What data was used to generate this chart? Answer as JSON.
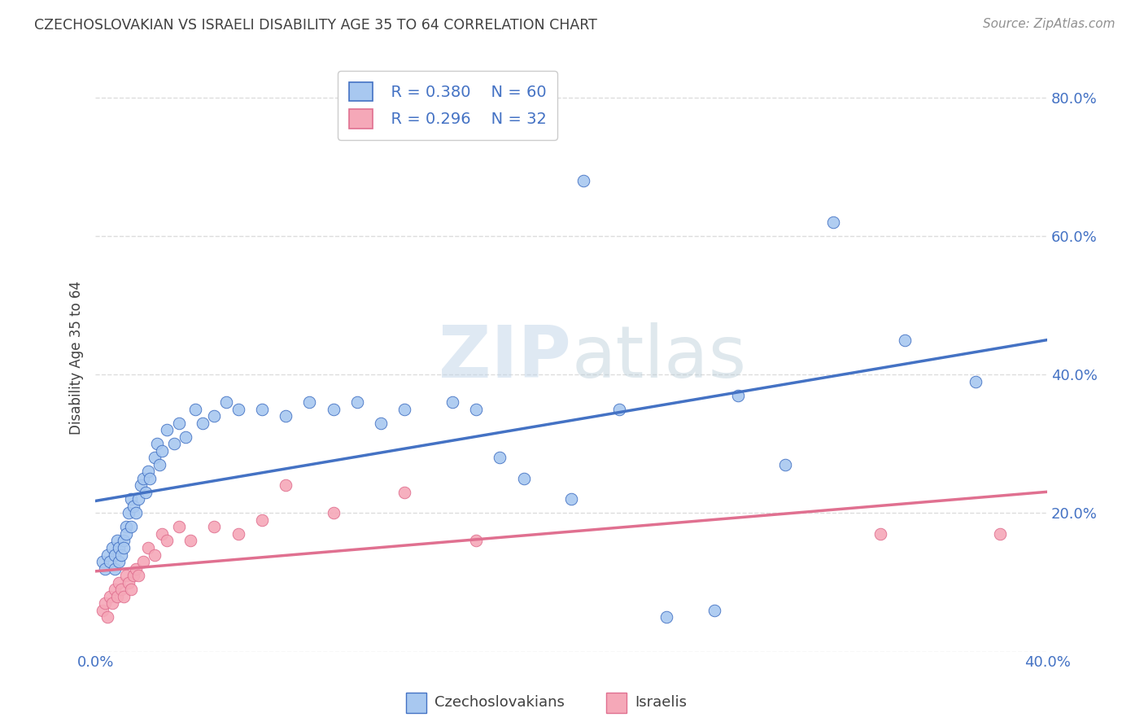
{
  "title": "CZECHOSLOVAKIAN VS ISRAELI DISABILITY AGE 35 TO 64 CORRELATION CHART",
  "source": "Source: ZipAtlas.com",
  "ylabel": "Disability Age 35 to 64",
  "xlabel_czechs": "Czechoslovakians",
  "xlabel_israelis": "Israelis",
  "watermark_zip": "ZIP",
  "watermark_atlas": "atlas",
  "xlim": [
    0.0,
    0.4
  ],
  "ylim": [
    0.0,
    0.85
  ],
  "xtick_vals": [
    0.0,
    0.1,
    0.2,
    0.3,
    0.4
  ],
  "xtick_labels": [
    "0.0%",
    "",
    "",
    "",
    "40.0%"
  ],
  "ytick_vals": [
    0.0,
    0.2,
    0.4,
    0.6,
    0.8
  ],
  "ytick_labels": [
    "",
    "20.0%",
    "40.0%",
    "60.0%",
    "80.0%"
  ],
  "legend_r_czech": "R = 0.380",
  "legend_n_czech": "N = 60",
  "legend_r_israeli": "R = 0.296",
  "legend_n_israeli": "N = 32",
  "color_czech": "#a8c8f0",
  "color_israeli": "#f5a8b8",
  "color_czech_line": "#4472c4",
  "color_israeli_line": "#e07090",
  "color_title": "#404040",
  "color_source": "#909090",
  "color_tick_labels": "#4472c4",
  "background_color": "#ffffff",
  "grid_color": "#dddddd",
  "czech_x": [
    0.003,
    0.004,
    0.005,
    0.006,
    0.007,
    0.008,
    0.008,
    0.009,
    0.01,
    0.01,
    0.011,
    0.012,
    0.012,
    0.013,
    0.013,
    0.014,
    0.015,
    0.015,
    0.016,
    0.017,
    0.018,
    0.019,
    0.02,
    0.021,
    0.022,
    0.023,
    0.025,
    0.026,
    0.027,
    0.028,
    0.03,
    0.033,
    0.035,
    0.038,
    0.042,
    0.045,
    0.05,
    0.055,
    0.06,
    0.07,
    0.08,
    0.09,
    0.1,
    0.11,
    0.12,
    0.13,
    0.15,
    0.16,
    0.17,
    0.18,
    0.2,
    0.205,
    0.22,
    0.24,
    0.26,
    0.27,
    0.29,
    0.31,
    0.34,
    0.37
  ],
  "czech_y": [
    0.13,
    0.12,
    0.14,
    0.13,
    0.15,
    0.14,
    0.12,
    0.16,
    0.15,
    0.13,
    0.14,
    0.16,
    0.15,
    0.18,
    0.17,
    0.2,
    0.18,
    0.22,
    0.21,
    0.2,
    0.22,
    0.24,
    0.25,
    0.23,
    0.26,
    0.25,
    0.28,
    0.3,
    0.27,
    0.29,
    0.32,
    0.3,
    0.33,
    0.31,
    0.35,
    0.33,
    0.34,
    0.36,
    0.35,
    0.35,
    0.34,
    0.36,
    0.35,
    0.36,
    0.33,
    0.35,
    0.36,
    0.35,
    0.28,
    0.25,
    0.22,
    0.68,
    0.35,
    0.05,
    0.06,
    0.37,
    0.27,
    0.62,
    0.45,
    0.39
  ],
  "israeli_x": [
    0.003,
    0.004,
    0.005,
    0.006,
    0.007,
    0.008,
    0.009,
    0.01,
    0.011,
    0.012,
    0.013,
    0.014,
    0.015,
    0.016,
    0.017,
    0.018,
    0.02,
    0.022,
    0.025,
    0.028,
    0.03,
    0.035,
    0.04,
    0.05,
    0.06,
    0.07,
    0.08,
    0.1,
    0.13,
    0.16,
    0.33,
    0.38
  ],
  "israeli_y": [
    0.06,
    0.07,
    0.05,
    0.08,
    0.07,
    0.09,
    0.08,
    0.1,
    0.09,
    0.08,
    0.11,
    0.1,
    0.09,
    0.11,
    0.12,
    0.11,
    0.13,
    0.15,
    0.14,
    0.17,
    0.16,
    0.18,
    0.16,
    0.18,
    0.17,
    0.19,
    0.24,
    0.2,
    0.23,
    0.16,
    0.17,
    0.17
  ]
}
